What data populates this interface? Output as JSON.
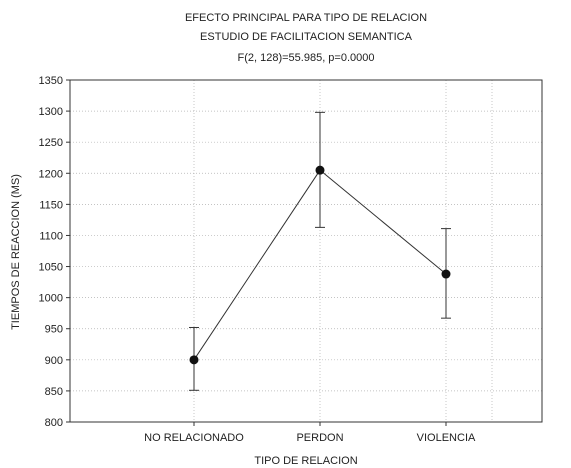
{
  "chart_data": {
    "type": "line",
    "title_lines": [
      "EFECTO PRINCIPAL PARA TIPO DE RELACION",
      "ESTUDIO DE FACILITACION SEMANTICA"
    ],
    "subtitle": "F(2, 128)=55.985, p=0.0000",
    "xlabel": "TIPO DE RELACION",
    "ylabel": "TIEMPOS DE REACCION (MS)",
    "categories": [
      "NO RELACIONADO",
      "PERDON",
      "VIOLENCIA"
    ],
    "series": [
      {
        "values": [
          900,
          1205,
          1038
        ],
        "error_lower": [
          851,
          1113,
          967
        ],
        "error_upper": [
          952,
          1298,
          1111
        ]
      }
    ],
    "ylim": [
      800,
      1350
    ],
    "yticks": [
      800,
      850,
      900,
      950,
      1000,
      1050,
      1100,
      1150,
      1200,
      1250,
      1300,
      1350
    ],
    "grid": true,
    "colors": {
      "line": "#333333",
      "marker": "#111111",
      "grid": "#b0b0b0",
      "frame": "#333333"
    }
  }
}
